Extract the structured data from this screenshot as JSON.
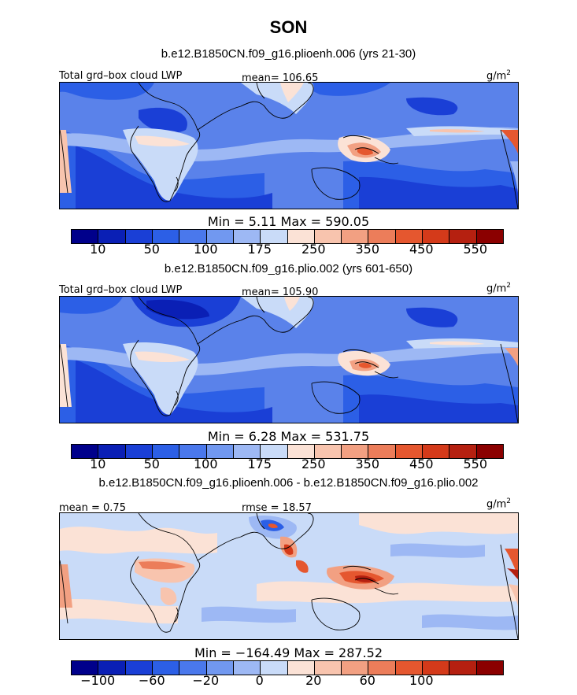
{
  "figure": {
    "title": "SON"
  },
  "panels": [
    {
      "run_title": "b.e12.B1850CN.f09_g16.plioenh.006 (yrs 21-30)",
      "left_label": "Total grd–box cloud LWP",
      "center_label": "mean= 106.65",
      "units": "g/m",
      "units_sup": "2",
      "min_max": "Min =    5.11  Max = 590.05",
      "type": "abs"
    },
    {
      "run_title": "b.e12.B1850CN.f09_g16.plio.002 (yrs 601-650)",
      "left_label": "Total grd–box cloud LWP",
      "center_label": "mean= 105.90",
      "units": "g/m",
      "units_sup": "2",
      "min_max": "Min =    6.28  Max = 531.75",
      "type": "abs"
    },
    {
      "run_title": "b.e12.B1850CN.f09_g16.plioenh.006 - b.e12.B1850CN.f09_g16.plio.002",
      "left_label": "mean =   0.75",
      "center_label": "rmse =  18.57",
      "units": "g/m",
      "units_sup": "2",
      "min_max": "Min = −164.49  Max = 287.52",
      "type": "diff"
    }
  ],
  "colorbars": {
    "abs": {
      "colors": [
        "#00008b",
        "#0a1fb5",
        "#1a3fd6",
        "#2c5fe6",
        "#4a78ec",
        "#7198f0",
        "#9db8f4",
        "#c9dbf8",
        "#fbe2d6",
        "#f8c4ae",
        "#f2a082",
        "#ec7d5a",
        "#e5572f",
        "#d43a1a",
        "#b52010",
        "#8b0000"
      ],
      "tick_labels": [
        "10",
        "50",
        "100",
        "175",
        "250",
        "350",
        "450",
        "550"
      ]
    },
    "diff": {
      "colors": [
        "#00008b",
        "#0a1fb5",
        "#1a3fd6",
        "#2c5fe6",
        "#4a78ec",
        "#7198f0",
        "#9db8f4",
        "#c9dbf8",
        "#fbe2d6",
        "#f8c4ae",
        "#f2a082",
        "#ec7d5a",
        "#e5572f",
        "#d43a1a",
        "#b52010",
        "#8b0000"
      ],
      "tick_labels": [
        "−100",
        "−60",
        "−20",
        "0",
        "20",
        "60",
        "100"
      ]
    }
  }
}
